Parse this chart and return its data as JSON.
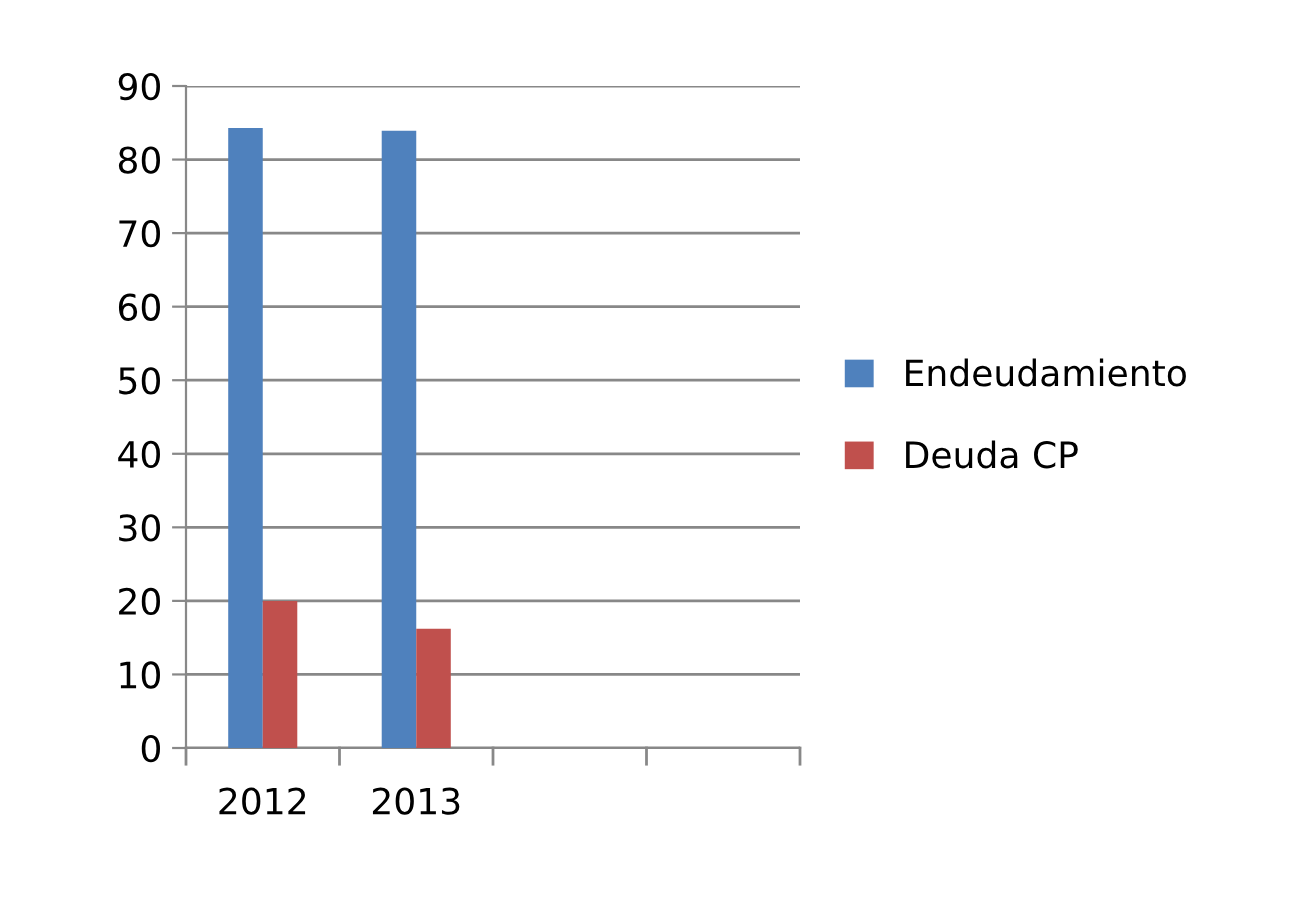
{
  "chart_data": {
    "type": "bar",
    "categories": [
      "2012",
      "2013",
      null,
      null
    ],
    "series": [
      {
        "name": "Endeudamiento",
        "color": "#4f81bd",
        "values": [
          84.3,
          83.9,
          null,
          null
        ]
      },
      {
        "name": "Deuda CP",
        "color": "#c0504d",
        "values": [
          20,
          16.2,
          null,
          null
        ]
      }
    ],
    "ylim": [
      0,
      90
    ],
    "yticks": [
      0,
      10,
      20,
      30,
      40,
      50,
      60,
      70,
      80,
      90
    ],
    "grid": "y",
    "legend": "right"
  }
}
